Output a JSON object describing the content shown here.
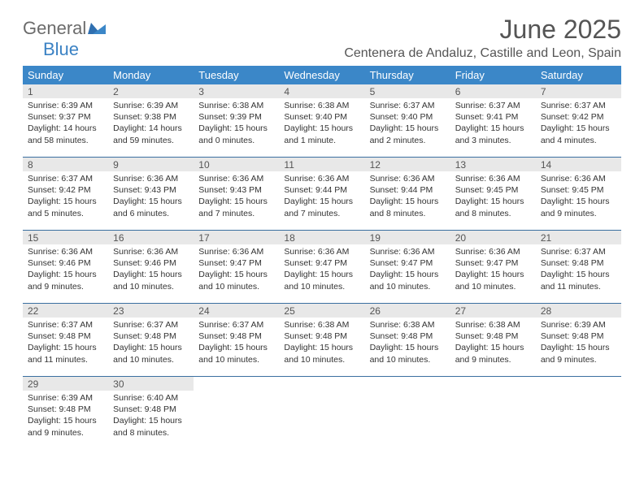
{
  "logo": {
    "text1": "General",
    "text2": "Blue"
  },
  "title": "June 2025",
  "location": "Centenera de Andaluz, Castille and Leon, Spain",
  "weekdays": [
    "Sunday",
    "Monday",
    "Tuesday",
    "Wednesday",
    "Thursday",
    "Friday",
    "Saturday"
  ],
  "colors": {
    "header_bg": "#3b87c8",
    "header_text": "#ffffff",
    "daynum_bg": "#e8e8e8",
    "week_border": "#3b6fa0",
    "title_color": "#555555",
    "body_text": "#333333",
    "logo_gray": "#6b6b6b",
    "logo_blue": "#3b82c4"
  },
  "weeks": [
    [
      {
        "n": "1",
        "sr": "6:39 AM",
        "ss": "9:37 PM",
        "dl": "14 hours and 58 minutes."
      },
      {
        "n": "2",
        "sr": "6:39 AM",
        "ss": "9:38 PM",
        "dl": "14 hours and 59 minutes."
      },
      {
        "n": "3",
        "sr": "6:38 AM",
        "ss": "9:39 PM",
        "dl": "15 hours and 0 minutes."
      },
      {
        "n": "4",
        "sr": "6:38 AM",
        "ss": "9:40 PM",
        "dl": "15 hours and 1 minute."
      },
      {
        "n": "5",
        "sr": "6:37 AM",
        "ss": "9:40 PM",
        "dl": "15 hours and 2 minutes."
      },
      {
        "n": "6",
        "sr": "6:37 AM",
        "ss": "9:41 PM",
        "dl": "15 hours and 3 minutes."
      },
      {
        "n": "7",
        "sr": "6:37 AM",
        "ss": "9:42 PM",
        "dl": "15 hours and 4 minutes."
      }
    ],
    [
      {
        "n": "8",
        "sr": "6:37 AM",
        "ss": "9:42 PM",
        "dl": "15 hours and 5 minutes."
      },
      {
        "n": "9",
        "sr": "6:36 AM",
        "ss": "9:43 PM",
        "dl": "15 hours and 6 minutes."
      },
      {
        "n": "10",
        "sr": "6:36 AM",
        "ss": "9:43 PM",
        "dl": "15 hours and 7 minutes."
      },
      {
        "n": "11",
        "sr": "6:36 AM",
        "ss": "9:44 PM",
        "dl": "15 hours and 7 minutes."
      },
      {
        "n": "12",
        "sr": "6:36 AM",
        "ss": "9:44 PM",
        "dl": "15 hours and 8 minutes."
      },
      {
        "n": "13",
        "sr": "6:36 AM",
        "ss": "9:45 PM",
        "dl": "15 hours and 8 minutes."
      },
      {
        "n": "14",
        "sr": "6:36 AM",
        "ss": "9:45 PM",
        "dl": "15 hours and 9 minutes."
      }
    ],
    [
      {
        "n": "15",
        "sr": "6:36 AM",
        "ss": "9:46 PM",
        "dl": "15 hours and 9 minutes."
      },
      {
        "n": "16",
        "sr": "6:36 AM",
        "ss": "9:46 PM",
        "dl": "15 hours and 10 minutes."
      },
      {
        "n": "17",
        "sr": "6:36 AM",
        "ss": "9:47 PM",
        "dl": "15 hours and 10 minutes."
      },
      {
        "n": "18",
        "sr": "6:36 AM",
        "ss": "9:47 PM",
        "dl": "15 hours and 10 minutes."
      },
      {
        "n": "19",
        "sr": "6:36 AM",
        "ss": "9:47 PM",
        "dl": "15 hours and 10 minutes."
      },
      {
        "n": "20",
        "sr": "6:36 AM",
        "ss": "9:47 PM",
        "dl": "15 hours and 10 minutes."
      },
      {
        "n": "21",
        "sr": "6:37 AM",
        "ss": "9:48 PM",
        "dl": "15 hours and 11 minutes."
      }
    ],
    [
      {
        "n": "22",
        "sr": "6:37 AM",
        "ss": "9:48 PM",
        "dl": "15 hours and 11 minutes."
      },
      {
        "n": "23",
        "sr": "6:37 AM",
        "ss": "9:48 PM",
        "dl": "15 hours and 10 minutes."
      },
      {
        "n": "24",
        "sr": "6:37 AM",
        "ss": "9:48 PM",
        "dl": "15 hours and 10 minutes."
      },
      {
        "n": "25",
        "sr": "6:38 AM",
        "ss": "9:48 PM",
        "dl": "15 hours and 10 minutes."
      },
      {
        "n": "26",
        "sr": "6:38 AM",
        "ss": "9:48 PM",
        "dl": "15 hours and 10 minutes."
      },
      {
        "n": "27",
        "sr": "6:38 AM",
        "ss": "9:48 PM",
        "dl": "15 hours and 9 minutes."
      },
      {
        "n": "28",
        "sr": "6:39 AM",
        "ss": "9:48 PM",
        "dl": "15 hours and 9 minutes."
      }
    ],
    [
      {
        "n": "29",
        "sr": "6:39 AM",
        "ss": "9:48 PM",
        "dl": "15 hours and 9 minutes."
      },
      {
        "n": "30",
        "sr": "6:40 AM",
        "ss": "9:48 PM",
        "dl": "15 hours and 8 minutes."
      },
      null,
      null,
      null,
      null,
      null
    ]
  ],
  "labels": {
    "sunrise": "Sunrise:",
    "sunset": "Sunset:",
    "daylight": "Daylight:"
  }
}
